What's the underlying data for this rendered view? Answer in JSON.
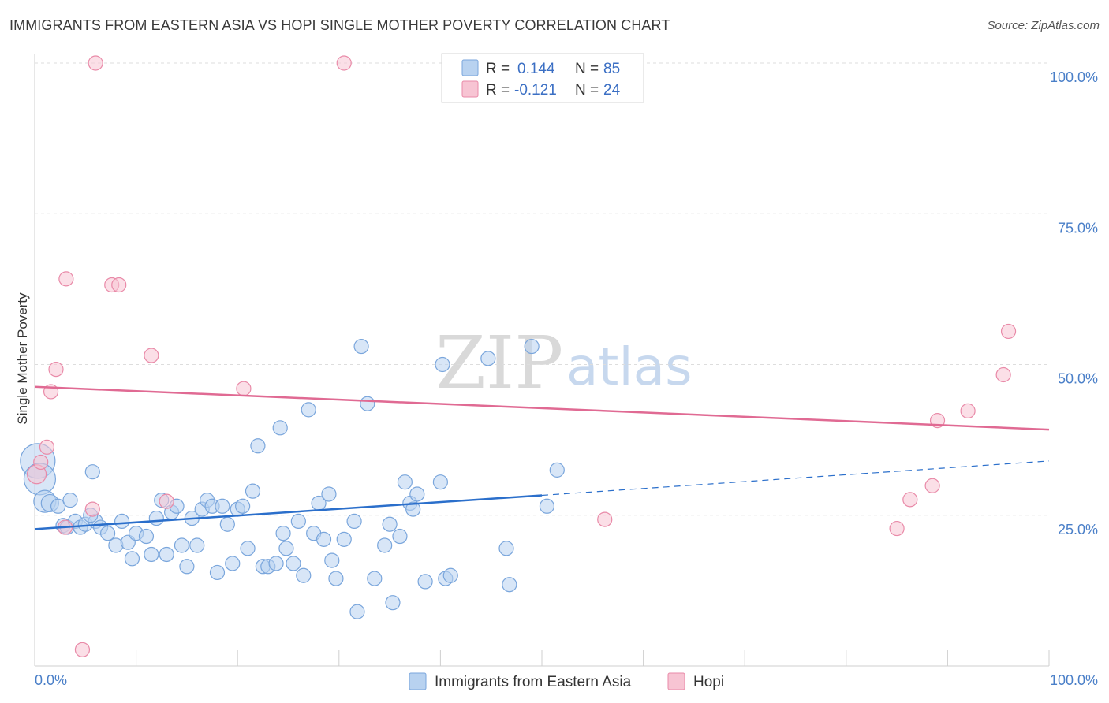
{
  "title": "IMMIGRANTS FROM EASTERN ASIA VS HOPI SINGLE MOTHER POVERTY CORRELATION CHART",
  "source": "Source: ZipAtlas.com",
  "watermark": {
    "zip": "ZIP",
    "atlas": "atlas"
  },
  "colors": {
    "blue_fill": "#b8d2f0",
    "blue_stroke": "#7aa6dc",
    "blue_line": "#2b6fcb",
    "pink_fill": "#f7c4d3",
    "pink_stroke": "#e98aa8",
    "pink_line": "#e06a93",
    "grid": "#dddddd",
    "tick_text": "#4a7fc8"
  },
  "legend": {
    "rows": [
      {
        "r_label": "R =",
        "r_value": "0.144",
        "n_label": "N =",
        "n_value": "85"
      },
      {
        "r_label": "R =",
        "r_value": "-0.121",
        "n_label": "N =",
        "n_value": "24"
      }
    ]
  },
  "chart_data": {
    "type": "scatter",
    "title": "IMMIGRANTS FROM EASTERN ASIA VS HOPI SINGLE MOTHER POVERTY CORRELATION CHART",
    "xlabel": "",
    "ylabel": "Single Mother Poverty",
    "xlim": [
      0,
      100
    ],
    "ylim": [
      0,
      100
    ],
    "x_tick_labels": [
      "0.0%",
      "100.0%"
    ],
    "y_tick_values": [
      25,
      50,
      75,
      100
    ],
    "y_tick_labels": [
      "25.0%",
      "50.0%",
      "75.0%",
      "100.0%"
    ],
    "grid": true,
    "legend_position": "top-center",
    "series": [
      {
        "name": "Immigrants from Eastern Asia",
        "color": "blue",
        "trend": {
          "x_start": 0,
          "y_start": 22.7,
          "x_end": 50,
          "y_end": 28.3,
          "dash_to_x": 100,
          "dash_to_y": 34.0
        },
        "points": [
          {
            "x": 0.3,
            "y": 34.0,
            "s": 22
          },
          {
            "x": 0.5,
            "y": 31.0,
            "s": 20
          },
          {
            "x": 1.0,
            "y": 27.3,
            "s": 14
          },
          {
            "x": 1.5,
            "y": 27.0,
            "s": 11
          },
          {
            "x": 2.3,
            "y": 26.5,
            "s": 9
          },
          {
            "x": 3.5,
            "y": 27.5,
            "s": 9
          },
          {
            "x": 2.8,
            "y": 23.3,
            "s": 9
          },
          {
            "x": 3.2,
            "y": 23.0,
            "s": 9
          },
          {
            "x": 4.0,
            "y": 24.0,
            "s": 9
          },
          {
            "x": 4.5,
            "y": 23.0,
            "s": 9
          },
          {
            "x": 5.0,
            "y": 23.5,
            "s": 9
          },
          {
            "x": 6.0,
            "y": 24.0,
            "s": 9
          },
          {
            "x": 5.5,
            "y": 25.0,
            "s": 9
          },
          {
            "x": 6.5,
            "y": 23.0,
            "s": 9
          },
          {
            "x": 5.7,
            "y": 32.2,
            "s": 9
          },
          {
            "x": 7.2,
            "y": 22.0,
            "s": 9
          },
          {
            "x": 8.0,
            "y": 20.0,
            "s": 9
          },
          {
            "x": 8.6,
            "y": 24.0,
            "s": 9
          },
          {
            "x": 9.2,
            "y": 20.5,
            "s": 9
          },
          {
            "x": 10.0,
            "y": 22.0,
            "s": 9
          },
          {
            "x": 9.6,
            "y": 17.8,
            "s": 9
          },
          {
            "x": 11.0,
            "y": 21.5,
            "s": 9
          },
          {
            "x": 11.5,
            "y": 18.5,
            "s": 9
          },
          {
            "x": 12.0,
            "y": 24.5,
            "s": 9
          },
          {
            "x": 12.5,
            "y": 27.5,
            "s": 9
          },
          {
            "x": 13.0,
            "y": 18.5,
            "s": 9
          },
          {
            "x": 13.5,
            "y": 25.5,
            "s": 9
          },
          {
            "x": 14.0,
            "y": 26.5,
            "s": 9
          },
          {
            "x": 14.5,
            "y": 20.0,
            "s": 9
          },
          {
            "x": 15.0,
            "y": 16.5,
            "s": 9
          },
          {
            "x": 15.5,
            "y": 24.5,
            "s": 9
          },
          {
            "x": 16.0,
            "y": 20.0,
            "s": 9
          },
          {
            "x": 16.5,
            "y": 26.0,
            "s": 9
          },
          {
            "x": 17.0,
            "y": 27.5,
            "s": 9
          },
          {
            "x": 17.5,
            "y": 26.5,
            "s": 9
          },
          {
            "x": 18.0,
            "y": 15.5,
            "s": 9
          },
          {
            "x": 18.5,
            "y": 26.5,
            "s": 9
          },
          {
            "x": 19.0,
            "y": 23.5,
            "s": 9
          },
          {
            "x": 19.5,
            "y": 17.0,
            "s": 9
          },
          {
            "x": 20.0,
            "y": 26.0,
            "s": 9
          },
          {
            "x": 20.5,
            "y": 26.5,
            "s": 9
          },
          {
            "x": 21.0,
            "y": 19.5,
            "s": 9
          },
          {
            "x": 21.5,
            "y": 29.0,
            "s": 9
          },
          {
            "x": 22.0,
            "y": 36.5,
            "s": 9
          },
          {
            "x": 22.5,
            "y": 16.5,
            "s": 9
          },
          {
            "x": 23.0,
            "y": 16.5,
            "s": 9
          },
          {
            "x": 23.8,
            "y": 17.0,
            "s": 9
          },
          {
            "x": 24.2,
            "y": 39.5,
            "s": 9
          },
          {
            "x": 24.8,
            "y": 19.5,
            "s": 9
          },
          {
            "x": 25.5,
            "y": 17.0,
            "s": 9
          },
          {
            "x": 26.0,
            "y": 24.0,
            "s": 9
          },
          {
            "x": 26.5,
            "y": 15.0,
            "s": 9
          },
          {
            "x": 27.0,
            "y": 42.5,
            "s": 9
          },
          {
            "x": 27.5,
            "y": 22.0,
            "s": 9
          },
          {
            "x": 28.0,
            "y": 27.0,
            "s": 9
          },
          {
            "x": 28.5,
            "y": 21.0,
            "s": 9
          },
          {
            "x": 29.0,
            "y": 28.5,
            "s": 9
          },
          {
            "x": 29.3,
            "y": 17.5,
            "s": 9
          },
          {
            "x": 29.7,
            "y": 14.5,
            "s": 9
          },
          {
            "x": 30.5,
            "y": 21.0,
            "s": 9
          },
          {
            "x": 31.5,
            "y": 24.0,
            "s": 9
          },
          {
            "x": 32.2,
            "y": 53.0,
            "s": 9
          },
          {
            "x": 31.8,
            "y": 9.0,
            "s": 9
          },
          {
            "x": 32.8,
            "y": 43.5,
            "s": 9
          },
          {
            "x": 33.5,
            "y": 14.5,
            "s": 9
          },
          {
            "x": 34.5,
            "y": 20.0,
            "s": 9
          },
          {
            "x": 35.0,
            "y": 23.5,
            "s": 9
          },
          {
            "x": 35.3,
            "y": 10.5,
            "s": 9
          },
          {
            "x": 36.0,
            "y": 21.5,
            "s": 9
          },
          {
            "x": 36.5,
            "y": 30.5,
            "s": 9
          },
          {
            "x": 37.0,
            "y": 27.0,
            "s": 9
          },
          {
            "x": 37.3,
            "y": 26.0,
            "s": 9
          },
          {
            "x": 37.7,
            "y": 28.5,
            "s": 9
          },
          {
            "x": 38.5,
            "y": 14.0,
            "s": 9
          },
          {
            "x": 40.0,
            "y": 30.5,
            "s": 9
          },
          {
            "x": 40.5,
            "y": 14.5,
            "s": 9
          },
          {
            "x": 41.0,
            "y": 15.0,
            "s": 9
          },
          {
            "x": 40.2,
            "y": 50.0,
            "s": 9
          },
          {
            "x": 44.7,
            "y": 51.0,
            "s": 9
          },
          {
            "x": 46.5,
            "y": 19.5,
            "s": 9
          },
          {
            "x": 46.8,
            "y": 13.5,
            "s": 9
          },
          {
            "x": 49.0,
            "y": 53.0,
            "s": 9
          },
          {
            "x": 50.5,
            "y": 26.5,
            "s": 9
          },
          {
            "x": 51.5,
            "y": 32.5,
            "s": 9
          },
          {
            "x": 24.5,
            "y": 22.0,
            "s": 9
          }
        ]
      },
      {
        "name": "Hopi",
        "color": "pink",
        "trend": {
          "x_start": 0,
          "y_start": 46.3,
          "x_end": 100,
          "y_end": 39.2
        },
        "points": [
          {
            "x": 0.2,
            "y": 31.8,
            "s": 12
          },
          {
            "x": 0.6,
            "y": 33.8,
            "s": 9
          },
          {
            "x": 1.2,
            "y": 36.3,
            "s": 9
          },
          {
            "x": 1.6,
            "y": 45.5,
            "s": 9
          },
          {
            "x": 2.1,
            "y": 49.2,
            "s": 9
          },
          {
            "x": 3.0,
            "y": 23.0,
            "s": 9
          },
          {
            "x": 3.1,
            "y": 64.2,
            "s": 9
          },
          {
            "x": 4.7,
            "y": 2.7,
            "s": 9
          },
          {
            "x": 5.7,
            "y": 26.0,
            "s": 9
          },
          {
            "x": 6.0,
            "y": 100.0,
            "s": 9
          },
          {
            "x": 7.6,
            "y": 63.2,
            "s": 9
          },
          {
            "x": 8.3,
            "y": 63.2,
            "s": 9
          },
          {
            "x": 11.5,
            "y": 51.5,
            "s": 9
          },
          {
            "x": 13.0,
            "y": 27.3,
            "s": 9
          },
          {
            "x": 20.6,
            "y": 46.0,
            "s": 9
          },
          {
            "x": 30.5,
            "y": 100.0,
            "s": 9
          },
          {
            "x": 56.2,
            "y": 24.3,
            "s": 9
          },
          {
            "x": 85.0,
            "y": 22.8,
            "s": 9
          },
          {
            "x": 86.3,
            "y": 27.6,
            "s": 9
          },
          {
            "x": 88.5,
            "y": 29.9,
            "s": 9
          },
          {
            "x": 89.0,
            "y": 40.7,
            "s": 9
          },
          {
            "x": 92.0,
            "y": 42.3,
            "s": 9
          },
          {
            "x": 95.5,
            "y": 48.3,
            "s": 9
          },
          {
            "x": 96.0,
            "y": 55.5,
            "s": 9
          }
        ]
      }
    ]
  },
  "bottom_legend": {
    "items": [
      "Immigrants from Eastern Asia",
      "Hopi"
    ]
  }
}
